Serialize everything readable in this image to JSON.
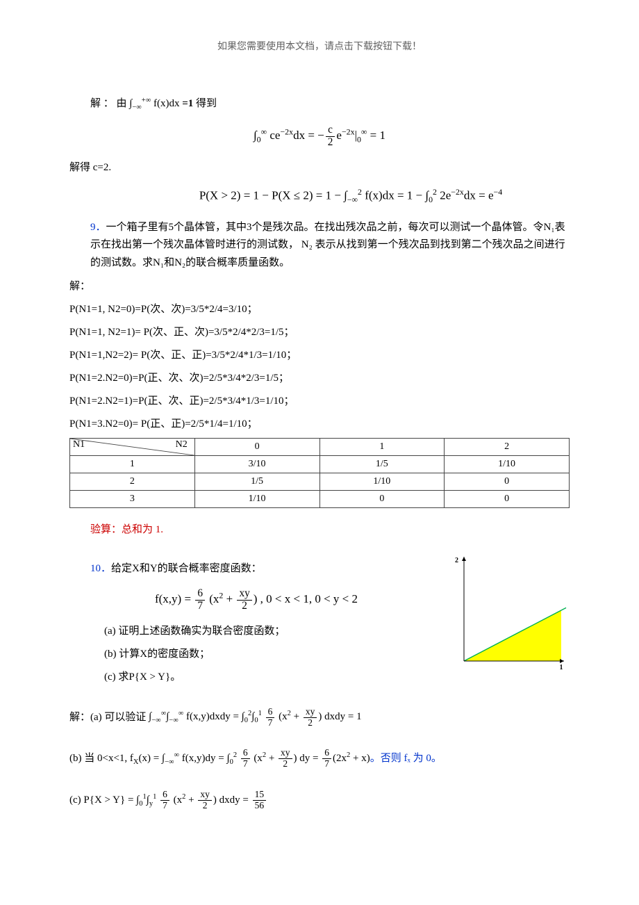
{
  "header_note": "如果您需要使用本文档，请点击下载按钮下载！",
  "sol8": {
    "line1_prefix": "解 ： 由 ",
    "line1_math": "∫<sub>−∞</sub><sup>+∞</sup> f(x)dx",
    "line1_eq": " =1",
    "line1_suffix": "  得到",
    "display1": "∫<sub>0</sub><sup>∞</sup> ce<sup>−2x</sup>dx = −<span class='frac'><span class='n'>c</span><span class='d'>2</span></span>e<sup>−2x</sup>|<sub>0</sub><sup>∞</sup> = 1",
    "line2": "解得 c=2.",
    "display2": "P(X &gt; 2) = 1 − P(X ≤ 2) = 1 − ∫<sub>−∞</sub><sup>2</sup> f(x)dx = 1 − ∫<sub>0</sub><sup>2</sup> 2e<sup>−2x</sup>dx = e<sup>−4</sup>"
  },
  "prob9": {
    "num": "9．",
    "text": "一个箱子里有5个晶体管，其中3个是残次品。在找出残次品之前，每次可以测试一个晶体管。令N₁表示在找出第一个残次晶体管时进行的测试数， N₂ 表示从找到第一个残次品到找到第二个残次品之间进行的测试数。求N₁和N₂的联合概率质量函数。"
  },
  "sol9": {
    "lines": [
      "解：",
      "P(N1=1, N2=0)=P(次、次)=3/5*2/4=3/10；",
      "P(N1=1, N2=1)= P(次、正、次)=3/5*2/4*2/3=1/5；",
      "P(N1=1,N2=2)= P(次、正、正)=3/5*2/4*1/3=1/10；",
      "P(N1=2.N2=0)=P(正、次、次)=2/5*3/4*2/3=1/5；",
      "P(N1=2.N2=1)=P(正、次、正)=2/5*3/4*1/3=1/10；",
      "P(N1=3.N2=0)= P(正、正)=2/5*1/4=1/10；"
    ],
    "table": {
      "corner_n1": "N1",
      "corner_n2": "N2",
      "col_headers": [
        "0",
        "1",
        "2"
      ],
      "rows": [
        {
          "h": "1",
          "cells": [
            "3/10",
            "1/5",
            "1/10"
          ]
        },
        {
          "h": "2",
          "cells": [
            "1/5",
            "1/10",
            "0"
          ]
        },
        {
          "h": "3",
          "cells": [
            "1/10",
            "0",
            "0"
          ]
        }
      ]
    },
    "check": "验算：总和为 1."
  },
  "prob10": {
    "num": "10．",
    "intro": "给定X和Y的联合概率密度函数：",
    "formula": "f(x,y) = <span class='frac'><span class='n'>6</span><span class='d'>7</span></span> (x<sup>2</sup> + <span class='frac'><span class='n'>xy</span><span class='d'>2</span></span>) ,   0 &lt; x &lt; 1,   0 &lt; y &lt; 2",
    "a": "(a) 证明上述函数确实为联合密度函数；",
    "b": "(b) 计算X的密度函数；",
    "c": "(c) 求P{X > Y}。"
  },
  "chart": {
    "type": "region-plot",
    "x_range": [
      0,
      1
    ],
    "y_range": [
      0,
      2
    ],
    "x_tick_label": "1",
    "y_tick_label": "2",
    "region_fill": "#ffff00",
    "region_points": [
      [
        0,
        0
      ],
      [
        1,
        0
      ],
      [
        1,
        1
      ]
    ],
    "line_color": "#00b050",
    "axis_color": "#000000",
    "background": "#ffffff",
    "aspect_w": 170,
    "aspect_h": 170,
    "label_fontsize": 10
  },
  "sol10": {
    "a_prefix": "解：(a) 可以验证 ",
    "a_math": "∫<sub>−∞</sub><sup>∞</sup>∫<sub>−∞</sub><sup>∞</sup> f(x,y)dxdy = ∫<sub>0</sub><sup>2</sup>∫<sub>0</sub><sup>1</sup> <span class='frac'><span class='n'>6</span><span class='d'>7</span></span> (x<sup>2</sup> + <span class='frac'><span class='n'>xy</span><span class='d'>2</span></span>) dxdy = 1",
    "b_prefix": "(b) 当 0<x<1, ",
    "b_math": "f<sub>X</sub>(x) = ∫<sub>−∞</sub><sup>∞</sup> f(x,y)dy = ∫<sub>0</sub><sup>2</sup> <span class='frac'><span class='n'>6</span><span class='d'>7</span></span> (x<sup>2</sup> + <span class='frac'><span class='n'>xy</span><span class='d'>2</span></span>) dy = <span class='frac'><span class='n'>6</span><span class='d'>7</span></span>(2x<sup>2</sup> + x)",
    "b_note": "。否则 fₓ 为 0。",
    "c_prefix": "(c) ",
    "c_math": "P{X &gt; Y} = ∫<sub>0</sub><sup>1</sup>∫<sub>y</sub><sup>1</sup> <span class='frac'><span class='n'>6</span><span class='d'>7</span></span> (x<sup>2</sup> + <span class='frac'><span class='n'>xy</span><span class='d'>2</span></span>) dxdy = <span class='frac'><span class='n'>15</span><span class='d'>56</span></span>"
  }
}
